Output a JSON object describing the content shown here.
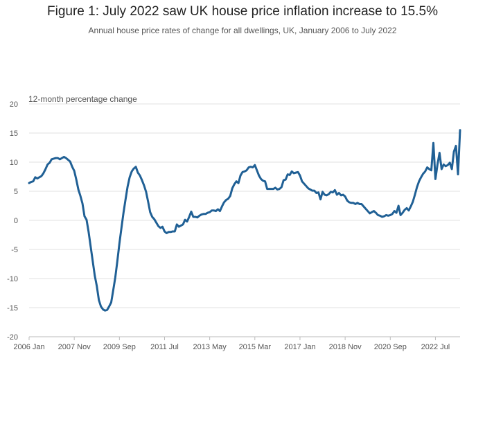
{
  "title": "Figure 1: July 2022 saw UK house price inflation increase to 15.5%",
  "subtitle": "Annual house price rates of change for all dwellings, UK, January 2006 to July 2022",
  "chart_data": {
    "type": "line",
    "ylabel": "12-month percentage change",
    "xlabel": "",
    "ylim": [
      -20,
      20
    ],
    "yticks": [
      20,
      15,
      10,
      5,
      0,
      -5,
      -10,
      -15,
      -20
    ],
    "xlim": [
      "2006 Jan",
      "2022 Jul"
    ],
    "xticks": [
      "2006 Jan",
      "2007 Nov",
      "2009 Sep",
      "2011 Jul",
      "2013 May",
      "2015 Mar",
      "2017 Jan",
      "2018 Nov",
      "2020 Sep",
      "2022 Jul"
    ],
    "grid": true,
    "colors": {
      "line": "#206095",
      "grid": "#e0e0e0"
    },
    "series": [
      {
        "start": "2006 Jan",
        "frequency": "monthly",
        "values": [
          6.4,
          6.6,
          6.7,
          7.4,
          7.2,
          7.4,
          7.6,
          8.1,
          8.8,
          9.6,
          9.9,
          10.5,
          10.6,
          10.7,
          10.7,
          10.5,
          10.7,
          10.9,
          10.7,
          10.4,
          10.1,
          9.2,
          8.5,
          7.0,
          5.3,
          4.2,
          2.9,
          0.7,
          0.1,
          -2.0,
          -4.5,
          -7.0,
          -9.5,
          -11.3,
          -13.7,
          -14.8,
          -15.3,
          -15.5,
          -15.4,
          -14.8,
          -14.1,
          -12.0,
          -9.8,
          -7.0,
          -4.0,
          -1.3,
          1.3,
          3.6,
          5.8,
          7.4,
          8.4,
          8.9,
          9.2,
          8.2,
          7.7,
          6.9,
          6.0,
          4.9,
          3.2,
          1.4,
          0.6,
          0.2,
          -0.4,
          -1.0,
          -1.3,
          -1.1,
          -1.9,
          -2.2,
          -2.0,
          -2.0,
          -1.9,
          -1.9,
          -0.7,
          -1.1,
          -0.9,
          -0.7,
          0.1,
          -0.2,
          0.6,
          1.5,
          0.6,
          0.6,
          0.5,
          0.8,
          1.0,
          1.1,
          1.1,
          1.3,
          1.4,
          1.7,
          1.7,
          1.6,
          1.9,
          1.6,
          2.4,
          3.1,
          3.5,
          3.7,
          4.2,
          5.5,
          6.2,
          6.7,
          6.4,
          7.7,
          8.3,
          8.4,
          8.6,
          9.1,
          9.2,
          9.1,
          9.5,
          8.6,
          7.7,
          7.1,
          6.8,
          6.7,
          5.4,
          5.4,
          5.4,
          5.4,
          5.6,
          5.3,
          5.4,
          5.7,
          6.9,
          7.0,
          7.9,
          7.8,
          8.4,
          8.1,
          8.2,
          8.3,
          7.7,
          6.7,
          6.3,
          5.9,
          5.5,
          5.3,
          5.1,
          5.1,
          4.7,
          4.8,
          3.6,
          4.9,
          4.4,
          4.3,
          4.5,
          4.9,
          4.8,
          5.2,
          4.4,
          4.7,
          4.3,
          4.4,
          4.1,
          3.4,
          3.1,
          3.0,
          3.0,
          2.8,
          3.0,
          2.8,
          2.8,
          2.4,
          2.0,
          1.6,
          1.2,
          1.4,
          1.6,
          1.3,
          0.9,
          0.8,
          0.6,
          0.7,
          0.9,
          0.8,
          0.9,
          1.1,
          1.6,
          1.3,
          2.5,
          0.9,
          1.3,
          1.8,
          2.1,
          1.7,
          2.4,
          3.2,
          4.4,
          5.7,
          6.7,
          7.4,
          8.0,
          8.4,
          9.1,
          8.8,
          8.6,
          13.3,
          7.1,
          9.6,
          11.6,
          8.8,
          9.6,
          9.3,
          9.5,
          9.9,
          8.8,
          11.8,
          12.8,
          7.9,
          15.5
        ]
      }
    ]
  }
}
